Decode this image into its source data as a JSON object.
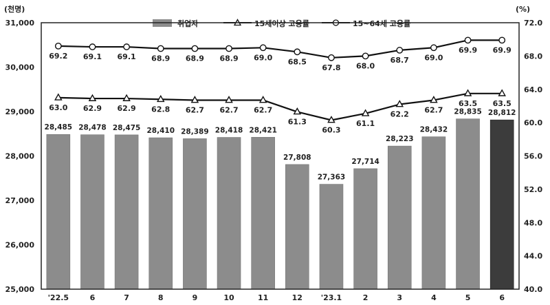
{
  "chart_data": {
    "type": "bar+line",
    "left_unit": "(천명)",
    "right_unit": "(%)",
    "categories": [
      "'22.5",
      "6",
      "7",
      "8",
      "9",
      "10",
      "11",
      "12",
      "'23.1",
      "2",
      "3",
      "4",
      "5",
      "6"
    ],
    "left_axis": {
      "min": 25000,
      "max": 31000,
      "ticks": [
        "25,000",
        "26,000",
        "27,000",
        "28,000",
        "29,000",
        "30,000",
        "31,000"
      ]
    },
    "right_axis": {
      "min": 40.0,
      "max": 72.0,
      "ticks": [
        "40.0",
        "44.0",
        "48.0",
        "52.0",
        "56.0",
        "60.0",
        "64.0",
        "68.0",
        "72.0"
      ]
    },
    "bars": {
      "name": "취업자",
      "values": [
        28485,
        28478,
        28475,
        28410,
        28389,
        28418,
        28421,
        27808,
        27363,
        27714,
        28223,
        28432,
        28835,
        28812
      ],
      "labels": [
        "28,485",
        "28,478",
        "28,475",
        "28,410",
        "28,389",
        "28,418",
        "28,421",
        "27,808",
        "27,363",
        "27,714",
        "28,223",
        "28,432",
        "28,835",
        "28,812"
      ],
      "color": "#8c8c8c",
      "highlight_color": "#3c3c3c",
      "highlight_index": 13
    },
    "series": [
      {
        "name": "15세이상 고용률",
        "marker": "triangle",
        "values": [
          63.0,
          62.9,
          62.9,
          62.8,
          62.7,
          62.7,
          62.7,
          61.3,
          60.3,
          61.1,
          62.2,
          62.7,
          63.5,
          63.5
        ],
        "labels": [
          "63.0",
          "62.9",
          "62.9",
          "62.8",
          "62.7",
          "62.7",
          "62.7",
          "61.3",
          "60.3",
          "61.1",
          "62.2",
          "62.7",
          "63.5",
          "63.5"
        ]
      },
      {
        "name": "15~64세 고용률",
        "marker": "circle",
        "values": [
          69.2,
          69.1,
          69.1,
          68.9,
          68.9,
          68.9,
          69.0,
          68.5,
          67.8,
          68.0,
          68.7,
          69.0,
          69.9,
          69.9
        ],
        "labels": [
          "69.2",
          "69.1",
          "69.1",
          "68.9",
          "68.9",
          "68.9",
          "69.0",
          "68.5",
          "67.8",
          "68.0",
          "68.7",
          "69.0",
          "69.9",
          "69.9"
        ]
      }
    ]
  }
}
